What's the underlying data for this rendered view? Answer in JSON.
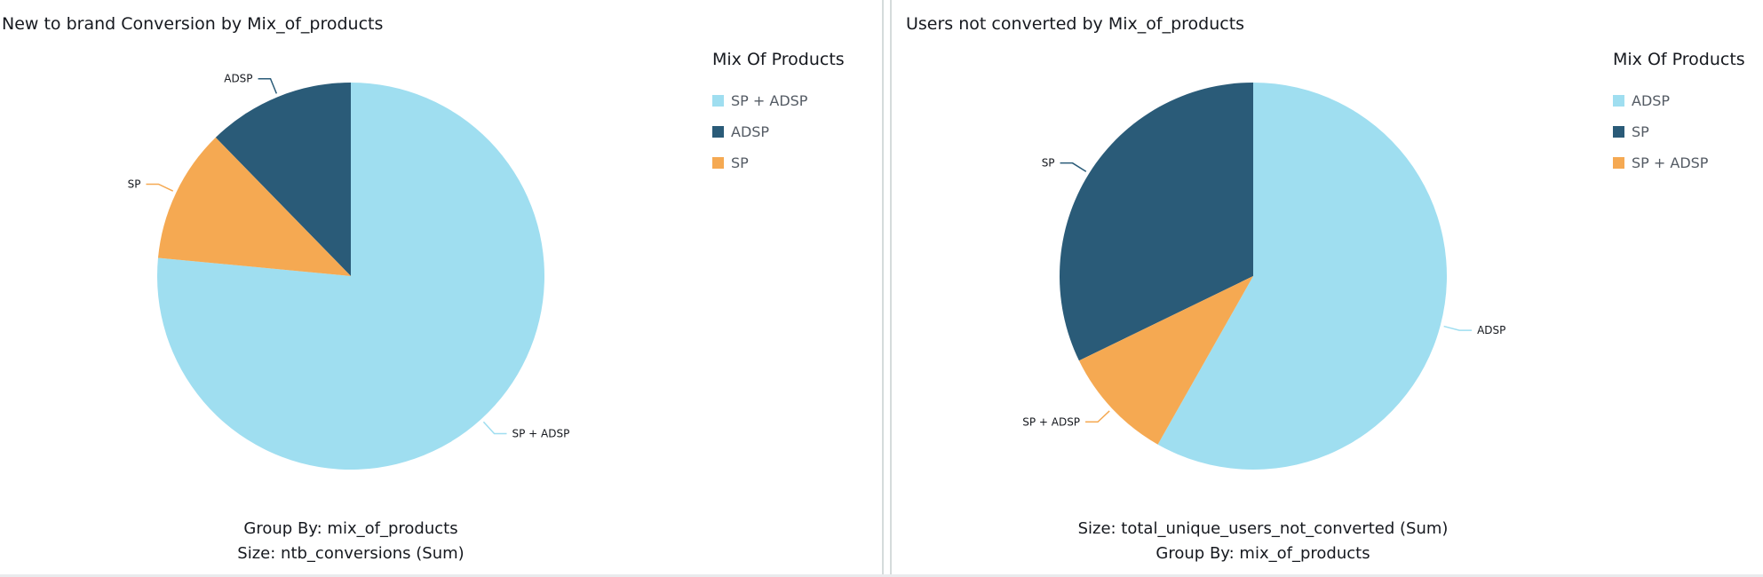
{
  "colors": {
    "light_blue": "#9fdef0",
    "dark_blue": "#2a5b78",
    "orange": "#f5a952"
  },
  "panels": [
    {
      "title": "New to brand Conversion by Mix_of_products",
      "legend_title": "Mix Of Products",
      "footer_lines": [
        "Group By: mix_of_products",
        "Size: ntb_conversions (Sum)"
      ]
    },
    {
      "title": "Users not converted by Mix_of_products",
      "legend_title": "Mix Of Products",
      "footer_lines": [
        "Size: total_unique_users_not_converted (Sum)",
        "Group By: mix_of_products"
      ]
    }
  ],
  "chart_data": [
    {
      "type": "pie",
      "title": "New to brand Conversion by Mix_of_products",
      "legend_title": "Mix Of Products",
      "legend_position": "right",
      "slices": [
        {
          "label": "SP + ADSP",
          "percent": 76.5,
          "color": "#9fdef0"
        },
        {
          "label": "ADSP",
          "percent": 12.3,
          "color": "#2a5b78"
        },
        {
          "label": "SP",
          "percent": 11.2,
          "color": "#f5a952"
        }
      ]
    },
    {
      "type": "pie",
      "title": "Users not converted by Mix_of_products",
      "legend_title": "Mix Of Products",
      "legend_position": "right",
      "slices": [
        {
          "label": "ADSP",
          "percent": 58.2,
          "color": "#9fdef0"
        },
        {
          "label": "SP",
          "percent": 32.2,
          "color": "#2a5b78"
        },
        {
          "label": "SP + ADSP",
          "percent": 9.6,
          "color": "#f5a952"
        }
      ]
    }
  ]
}
